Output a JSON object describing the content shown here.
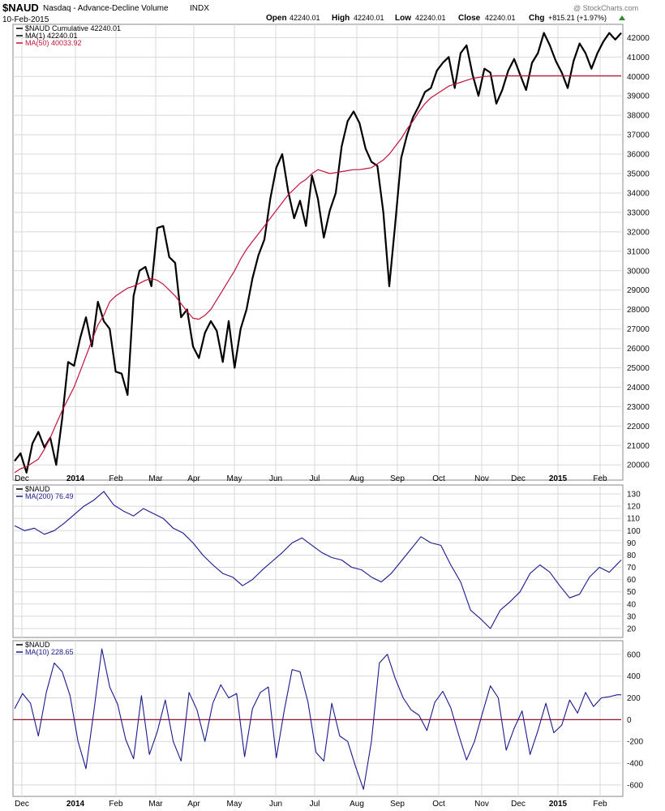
{
  "header": {
    "symbol": "$NAUD",
    "description": "Nasdaq - Advance-Decline Volume",
    "exchange": "INDX",
    "date": "10-Feb-2015",
    "open_label": "Open",
    "open": "42240.01",
    "high_label": "High",
    "high": "42240.01",
    "low_label": "Low",
    "low": "42240.01",
    "close_label": "Close",
    "close": "42240.01",
    "chg_label": "Chg",
    "chg": "+815.21 (+1.97%)",
    "watermark": "@ StockCharts.com"
  },
  "colors": {
    "main_line": "#000000",
    "ma50": "#c0143c",
    "osc_line": "#1a1a8c",
    "zero_line": "#9b1030",
    "grid": "#d8d8d8"
  },
  "chart_data": [
    {
      "type": "line",
      "panel": "price",
      "legend": [
        "$NAUD Cumulative 42240.01",
        "MA(1) 42240.01",
        "MA(50) 40033.92"
      ],
      "ylim": [
        19300,
        42600
      ],
      "y_ticks": [
        20000,
        21000,
        22000,
        23000,
        24000,
        25000,
        26000,
        27000,
        28000,
        29000,
        30000,
        31000,
        32000,
        33000,
        34000,
        35000,
        36000,
        37000,
        38000,
        39000,
        40000,
        41000,
        42000
      ],
      "x": [
        0,
        3,
        6,
        9,
        12,
        15,
        18,
        21,
        24,
        27,
        30,
        33,
        36,
        39,
        42,
        45,
        48,
        51,
        54,
        57,
        60,
        63,
        66,
        69,
        72,
        75,
        78,
        81,
        84,
        87,
        90,
        93,
        96,
        99,
        102,
        105,
        108,
        111,
        114,
        117,
        120,
        123,
        126,
        129,
        132,
        135,
        138,
        141,
        144,
        147,
        150,
        153,
        156,
        159,
        162,
        165,
        168,
        171,
        174,
        177,
        180,
        183,
        186,
        189,
        192,
        195,
        198,
        201,
        204,
        207,
        210,
        213,
        216,
        219,
        222,
        225,
        228,
        231,
        234,
        237,
        240,
        243,
        246,
        249,
        252,
        255,
        258,
        261,
        264,
        267,
        270,
        273,
        276,
        279,
        282,
        285,
        288,
        291,
        294,
        297,
        300,
        303,
        306
      ],
      "series": [
        {
          "name": "$NAUD Cumulative",
          "values": [
            20200,
            20600,
            19600,
            21100,
            21700,
            20900,
            21400,
            20000,
            22400,
            25300,
            25100,
            26500,
            27600,
            26100,
            28400,
            27400,
            27000,
            24800,
            24700,
            23600,
            28700,
            30000,
            30200,
            29200,
            32200,
            32300,
            30700,
            30400,
            27600,
            28000,
            26100,
            25500,
            26800,
            27400,
            26900,
            25300,
            27400,
            25000,
            27000,
            28000,
            29600,
            30800,
            31600,
            33700,
            35300,
            36000,
            34100,
            32700,
            33600,
            32300,
            34900,
            33700,
            31700,
            33100,
            34000,
            36400,
            37700,
            38200,
            37600,
            36300,
            35600,
            35400,
            33000,
            29200,
            32400,
            35800,
            37000,
            37900,
            38500,
            39200,
            39400,
            40300,
            40700,
            41000,
            39400,
            41200,
            41600,
            40100,
            39000,
            40400,
            40200,
            38600,
            39300,
            40300,
            40900,
            40100,
            39300,
            40700,
            41200,
            42240,
            41600,
            40800,
            40200,
            39400,
            40800,
            41700,
            41200,
            40400,
            41200,
            41800,
            42240,
            41900,
            42240
          ]
        },
        {
          "name": "MA(50)",
          "values": [
            19600,
            19800,
            19900,
            20100,
            20300,
            20800,
            21400,
            22100,
            22800,
            23400,
            24000,
            24800,
            25600,
            26400,
            27200,
            27700,
            28400,
            28700,
            28900,
            29100,
            29200,
            29350,
            29500,
            29600,
            29500,
            29300,
            29000,
            28700,
            28300,
            27900,
            27550,
            27500,
            27700,
            28000,
            28500,
            29000,
            29500,
            30000,
            30600,
            31100,
            31500,
            31900,
            32300,
            32700,
            33100,
            33500,
            33900,
            34200,
            34500,
            34700,
            35000,
            35200,
            35100,
            35000,
            35050,
            35100,
            35150,
            35200,
            35200,
            35250,
            35300,
            35500,
            35700,
            36000,
            36400,
            36800,
            37300,
            37700,
            38200,
            38600,
            38900,
            39100,
            39300,
            39500,
            39600,
            39700,
            39800,
            39900,
            39950,
            40000,
            40020,
            40030,
            40030,
            40033,
            40033,
            40033,
            40033,
            40033,
            40033,
            40033,
            40033,
            40033,
            40033,
            40033,
            40033,
            40033,
            40033,
            40033,
            40033,
            40033,
            40033,
            40033,
            40033
          ]
        }
      ],
      "x_labels": [
        "Dec",
        "2014",
        "Feb",
        "Mar",
        "Apr",
        "May",
        "Jun",
        "Jul",
        "Aug",
        "Sep",
        "Oct",
        "Nov",
        "Dec",
        "2015",
        "Feb"
      ]
    },
    {
      "type": "line",
      "panel": "ma200",
      "legend": [
        "$NAUD",
        "MA(200) 76.49"
      ],
      "ylim": [
        14,
        136
      ],
      "y_ticks": [
        20,
        30,
        40,
        50,
        60,
        70,
        80,
        90,
        100,
        110,
        120,
        130
      ],
      "x": [
        0,
        5,
        10,
        15,
        20,
        25,
        30,
        35,
        40,
        45,
        50,
        55,
        60,
        65,
        70,
        75,
        80,
        85,
        90,
        95,
        100,
        105,
        110,
        115,
        120,
        125,
        130,
        135,
        140,
        145,
        150,
        155,
        160,
        165,
        170,
        175,
        180,
        185,
        190,
        195,
        200,
        205,
        210,
        215,
        220,
        225,
        230,
        235,
        240,
        245,
        250,
        255,
        260,
        265,
        270,
        275,
        280,
        285,
        290,
        295,
        300,
        306
      ],
      "series": [
        {
          "name": "MA(200)",
          "values": [
            104,
            100,
            102,
            97,
            100,
            106,
            113,
            120,
            125,
            132,
            121,
            116,
            112,
            118,
            114,
            110,
            102,
            98,
            90,
            80,
            72,
            65,
            62,
            55,
            60,
            68,
            75,
            82,
            90,
            94,
            88,
            82,
            78,
            76,
            70,
            68,
            62,
            58,
            65,
            75,
            85,
            95,
            90,
            88,
            72,
            58,
            35,
            28,
            20,
            35,
            42,
            50,
            65,
            72,
            66,
            55,
            45,
            48,
            62,
            70,
            66,
            76
          ]
        }
      ],
      "x_labels": []
    },
    {
      "type": "line",
      "panel": "ma10",
      "legend": [
        "$NAUD",
        "MA(10) 228.65"
      ],
      "ylim": [
        -690,
        710
      ],
      "y_ticks": [
        -600,
        -400,
        -200,
        0,
        200,
        400,
        600
      ],
      "x": [
        0,
        4,
        8,
        12,
        16,
        20,
        24,
        28,
        32,
        36,
        40,
        44,
        48,
        52,
        56,
        60,
        64,
        68,
        72,
        76,
        80,
        84,
        88,
        92,
        96,
        100,
        104,
        108,
        112,
        116,
        120,
        124,
        128,
        132,
        136,
        140,
        144,
        148,
        152,
        156,
        160,
        164,
        168,
        172,
        176,
        180,
        184,
        188,
        192,
        196,
        200,
        204,
        208,
        212,
        216,
        220,
        224,
        228,
        232,
        236,
        240,
        244,
        248,
        252,
        256,
        260,
        264,
        268,
        272,
        276,
        280,
        284,
        288,
        292,
        296,
        300,
        304,
        306
      ],
      "series": [
        {
          "name": "MA(10)",
          "values": [
            100,
            240,
            150,
            -150,
            250,
            520,
            440,
            220,
            -200,
            -450,
            80,
            650,
            300,
            140,
            -180,
            -360,
            220,
            -320,
            -110,
            180,
            -200,
            -380,
            250,
            90,
            -200,
            150,
            320,
            200,
            240,
            -340,
            100,
            250,
            300,
            -350,
            80,
            460,
            440,
            160,
            -300,
            -380,
            150,
            -150,
            -200,
            -430,
            -640,
            -200,
            520,
            600,
            380,
            200,
            90,
            40,
            -100,
            160,
            260,
            110,
            -140,
            -370,
            -200,
            60,
            310,
            200,
            -280,
            -80,
            80,
            -320,
            -100,
            150,
            -120,
            -50,
            180,
            60,
            250,
            120,
            200,
            210,
            228,
            228
          ]
        }
      ],
      "x_labels": [
        "Dec",
        "2014",
        "Feb",
        "Mar",
        "Apr",
        "May",
        "Jun",
        "Jul",
        "Aug",
        "Sep",
        "Oct",
        "Nov",
        "Dec",
        "2015",
        "Feb"
      ]
    }
  ]
}
